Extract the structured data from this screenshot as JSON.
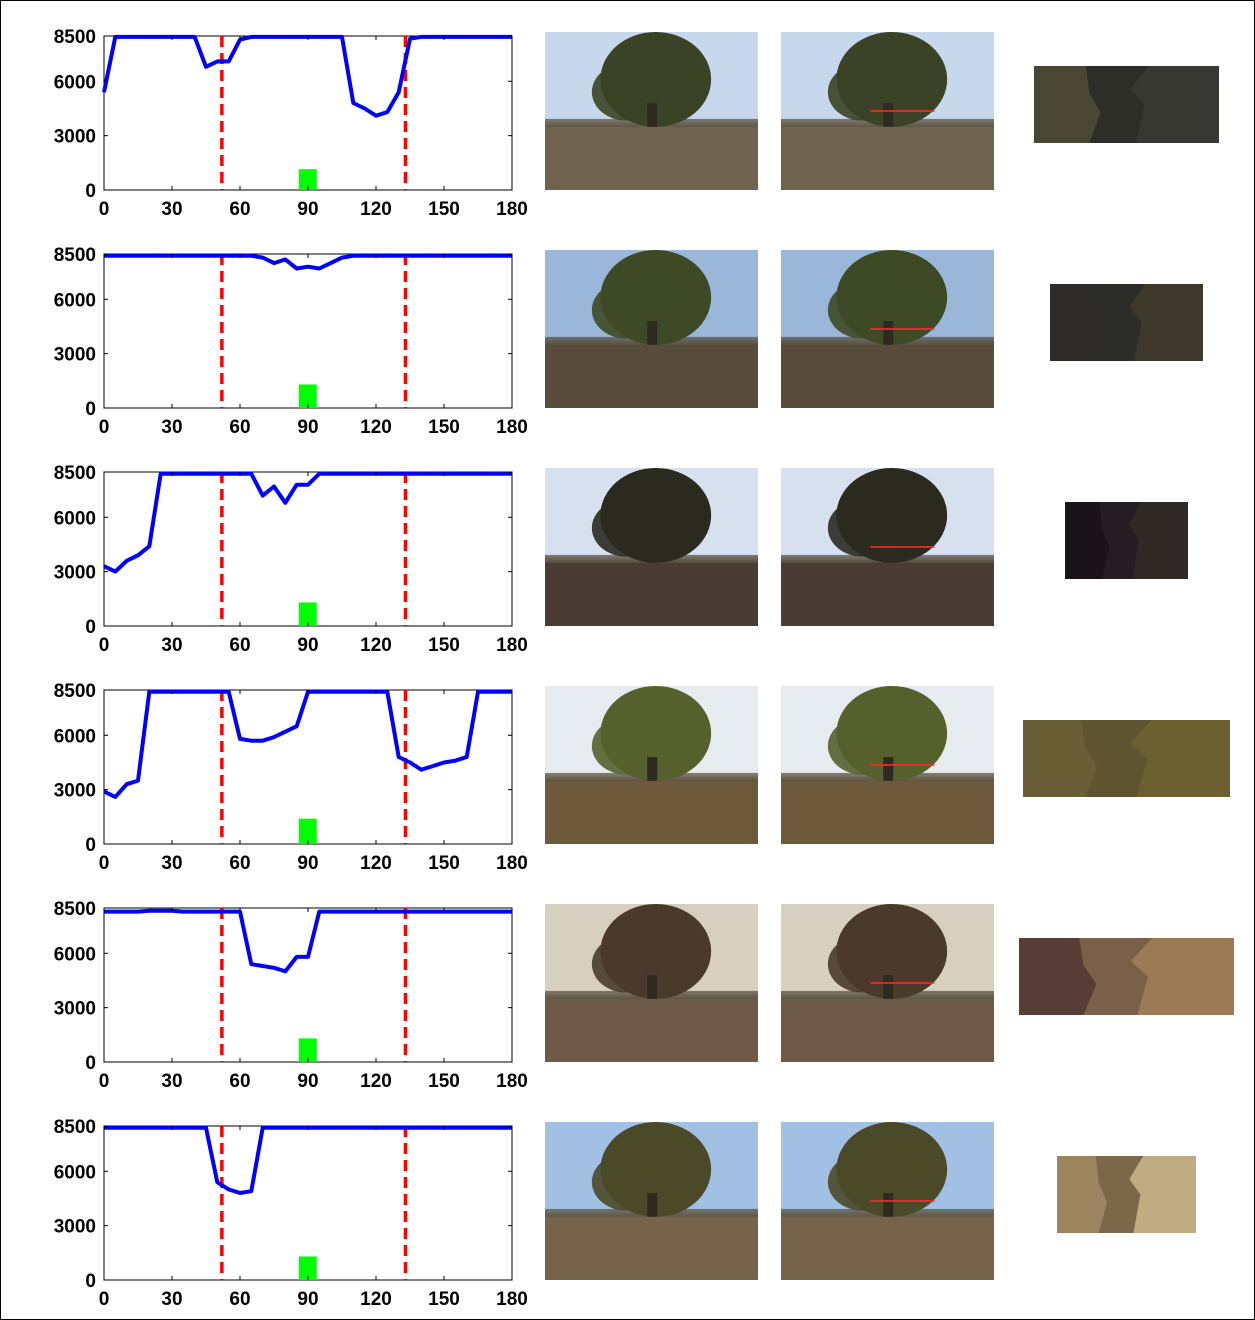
{
  "chart_data": [
    {
      "type": "line",
      "x": [
        0,
        5,
        10,
        15,
        20,
        25,
        30,
        35,
        40,
        45,
        50,
        55,
        60,
        65,
        70,
        75,
        80,
        85,
        90,
        95,
        100,
        105,
        110,
        115,
        120,
        125,
        130,
        135,
        140,
        145,
        150,
        155,
        160,
        165,
        170,
        175,
        180
      ],
      "series": [
        {
          "values": [
            5400,
            8450,
            8450,
            8450,
            8450,
            8450,
            8450,
            8450,
            8450,
            6800,
            7100,
            7100,
            8300,
            8450,
            8450,
            8450,
            8450,
            8450,
            8450,
            8450,
            8450,
            8450,
            4800,
            4500,
            4100,
            4300,
            5400,
            8350,
            8450,
            8450,
            8450,
            8450,
            8450,
            8450,
            8450,
            8450,
            8450
          ],
          "color": "#0000ff"
        }
      ],
      "markers": [
        52,
        133
      ],
      "bar": {
        "x": 89,
        "height": 1150
      },
      "xticks": [
        "0",
        "30",
        "60",
        "90",
        "120",
        "150",
        "180"
      ],
      "yticks": [
        "0",
        "3000",
        "6000",
        "8500"
      ],
      "xlim": [
        0,
        180
      ],
      "ylim": [
        0,
        8500
      ]
    },
    {
      "type": "line",
      "x": [
        0,
        5,
        10,
        15,
        20,
        25,
        30,
        35,
        40,
        45,
        50,
        55,
        60,
        65,
        70,
        75,
        80,
        85,
        90,
        95,
        100,
        105,
        110,
        115,
        120,
        125,
        130,
        135,
        140,
        145,
        150,
        155,
        160,
        165,
        170,
        175,
        180
      ],
      "series": [
        {
          "values": [
            8400,
            8400,
            8400,
            8400,
            8400,
            8400,
            8400,
            8400,
            8400,
            8400,
            8400,
            8400,
            8400,
            8400,
            8300,
            8000,
            8200,
            7700,
            7800,
            7700,
            8000,
            8300,
            8400,
            8400,
            8400,
            8400,
            8400,
            8400,
            8400,
            8400,
            8400,
            8400,
            8400,
            8400,
            8400,
            8400,
            8400
          ],
          "color": "#0000ff"
        }
      ],
      "markers": [
        52,
        133
      ],
      "bar": {
        "x": 89,
        "height": 1300
      },
      "xticks": [
        "0",
        "30",
        "60",
        "90",
        "120",
        "150",
        "180"
      ],
      "yticks": [
        "0",
        "3000",
        "6000",
        "8500"
      ],
      "xlim": [
        0,
        180
      ],
      "ylim": [
        0,
        8500
      ]
    },
    {
      "type": "line",
      "x": [
        0,
        5,
        10,
        15,
        20,
        25,
        30,
        35,
        40,
        45,
        50,
        55,
        60,
        65,
        70,
        75,
        80,
        85,
        90,
        95,
        100,
        105,
        110,
        115,
        120,
        125,
        130,
        135,
        140,
        145,
        150,
        155,
        160,
        165,
        170,
        175,
        180
      ],
      "series": [
        {
          "values": [
            3300,
            3000,
            3600,
            3900,
            4400,
            8400,
            8400,
            8400,
            8400,
            8400,
            8400,
            8400,
            8400,
            8400,
            7200,
            7700,
            6800,
            7800,
            7800,
            8400,
            8400,
            8400,
            8400,
            8400,
            8400,
            8400,
            8400,
            8400,
            8400,
            8400,
            8400,
            8400,
            8400,
            8400,
            8400,
            8400,
            8400
          ],
          "color": "#0000ff"
        }
      ],
      "markers": [
        52,
        133
      ],
      "bar": {
        "x": 89,
        "height": 1300
      },
      "xticks": [
        "0",
        "30",
        "60",
        "90",
        "120",
        "150",
        "180"
      ],
      "yticks": [
        "0",
        "3000",
        "6000",
        "8500"
      ],
      "xlim": [
        0,
        180
      ],
      "ylim": [
        0,
        8500
      ]
    },
    {
      "type": "line",
      "x": [
        0,
        5,
        10,
        15,
        20,
        25,
        30,
        35,
        40,
        45,
        50,
        55,
        60,
        65,
        70,
        75,
        80,
        85,
        90,
        95,
        100,
        105,
        110,
        115,
        120,
        125,
        130,
        135,
        140,
        145,
        150,
        155,
        160,
        165,
        170,
        175,
        180
      ],
      "series": [
        {
          "values": [
            2900,
            2600,
            3300,
            3500,
            8400,
            8400,
            8400,
            8400,
            8400,
            8400,
            8400,
            8400,
            5800,
            5700,
            5700,
            5900,
            6200,
            6500,
            8400,
            8400,
            8400,
            8400,
            8400,
            8400,
            8400,
            8400,
            4800,
            4500,
            4100,
            4300,
            4500,
            4600,
            4800,
            8400,
            8400,
            8400,
            8400
          ],
          "color": "#0000ff"
        }
      ],
      "markers": [
        52,
        133
      ],
      "bar": {
        "x": 89,
        "height": 1400
      },
      "xticks": [
        "0",
        "30",
        "60",
        "90",
        "120",
        "150",
        "180"
      ],
      "yticks": [
        "0",
        "3000",
        "6000",
        "8500"
      ],
      "xlim": [
        0,
        180
      ],
      "ylim": [
        0,
        8500
      ]
    },
    {
      "type": "line",
      "x": [
        0,
        5,
        10,
        15,
        20,
        25,
        30,
        35,
        40,
        45,
        50,
        55,
        60,
        65,
        70,
        75,
        80,
        85,
        90,
        95,
        100,
        105,
        110,
        115,
        120,
        125,
        130,
        135,
        140,
        145,
        150,
        155,
        160,
        165,
        170,
        175,
        180
      ],
      "series": [
        {
          "values": [
            8300,
            8300,
            8300,
            8300,
            8350,
            8350,
            8350,
            8300,
            8300,
            8300,
            8300,
            8300,
            8300,
            5400,
            5300,
            5200,
            5000,
            5800,
            5800,
            8300,
            8300,
            8300,
            8300,
            8300,
            8300,
            8300,
            8300,
            8300,
            8300,
            8300,
            8300,
            8300,
            8300,
            8300,
            8300,
            8300,
            8300
          ],
          "color": "#0000ff"
        }
      ],
      "markers": [
        52,
        133
      ],
      "bar": {
        "x": 89,
        "height": 1300
      },
      "xticks": [
        "0",
        "30",
        "60",
        "90",
        "120",
        "150",
        "180"
      ],
      "yticks": [
        "0",
        "3000",
        "6000",
        "8500"
      ],
      "xlim": [
        0,
        180
      ],
      "ylim": [
        0,
        8500
      ]
    },
    {
      "type": "line",
      "x": [
        0,
        5,
        10,
        15,
        20,
        25,
        30,
        35,
        40,
        45,
        50,
        55,
        60,
        65,
        70,
        75,
        80,
        85,
        90,
        95,
        100,
        105,
        110,
        115,
        120,
        125,
        130,
        135,
        140,
        145,
        150,
        155,
        160,
        165,
        170,
        175,
        180
      ],
      "series": [
        {
          "values": [
            8400,
            8400,
            8400,
            8400,
            8400,
            8400,
            8400,
            8400,
            8400,
            8400,
            5400,
            5000,
            4800,
            4900,
            8400,
            8400,
            8400,
            8400,
            8400,
            8400,
            8400,
            8400,
            8400,
            8400,
            8400,
            8400,
            8400,
            8400,
            8400,
            8400,
            8400,
            8400,
            8400,
            8400,
            8400,
            8400,
            8400
          ],
          "color": "#0000ff"
        }
      ],
      "markers": [
        52,
        133
      ],
      "bar": {
        "x": 89,
        "height": 1300
      },
      "xticks": [
        "0",
        "30",
        "60",
        "90",
        "120",
        "150",
        "180"
      ],
      "yticks": [
        "0",
        "3000",
        "6000",
        "8500"
      ],
      "xlim": [
        0,
        180
      ],
      "ylim": [
        0,
        8500
      ]
    }
  ],
  "photos": [
    {
      "sky": "#c8d8ec",
      "ground": "#6f6350",
      "tree": "#3b4326"
    },
    {
      "sky": "#9ab6d8",
      "ground": "#5a4c3c",
      "tree": "#3e4a26"
    },
    {
      "sky": "#d6e0ee",
      "ground": "#4a3c34",
      "tree": "#2a2a1e"
    },
    {
      "sky": "#e6ebef",
      "ground": "#6e5a3a",
      "tree": "#56602c"
    },
    {
      "sky": "#d7cfc0",
      "ground": "#6e5a48",
      "tree": "#4a3a2c"
    },
    {
      "sky": "#a2c0e4",
      "ground": "#75644a",
      "tree": "#4a4a28"
    }
  ],
  "patches": [
    {
      "colors": [
        "#4a4634",
        "#2e2e28",
        "#3a3a34"
      ]
    },
    {
      "colors": [
        "#2e2c2a",
        "#2c2c28",
        "#403a2c"
      ]
    },
    {
      "colors": [
        "#1a1418",
        "#241e22",
        "#302a26"
      ]
    },
    {
      "colors": [
        "#6a5e34",
        "#5e5430",
        "#6e6232"
      ]
    },
    {
      "colors": [
        "#563e36",
        "#7a6048",
        "#9e7e58"
      ]
    },
    {
      "colors": [
        "#9c845e",
        "#7a6848",
        "#c8b48a"
      ]
    }
  ]
}
